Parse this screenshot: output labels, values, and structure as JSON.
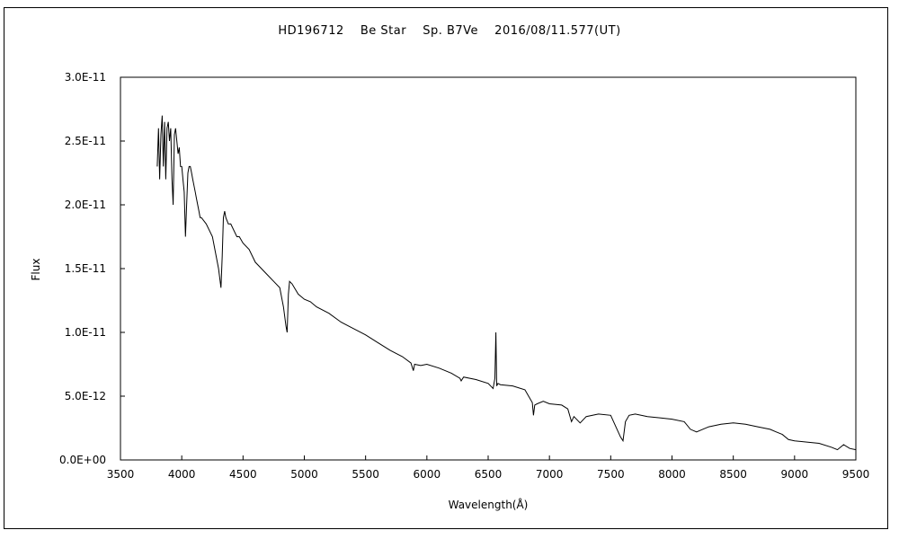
{
  "chart_data": {
    "type": "line",
    "title": "HD196712　 Be Star　 Sp. B7Ve　 2016/08/11.577(UT)",
    "xlabel": "Wavelength(Å)",
    "ylabel": "Flux",
    "xlim": [
      3500,
      9500
    ],
    "ylim": [
      0,
      3e-11
    ],
    "x_ticks": [
      "3500",
      "4000",
      "4500",
      "5000",
      "5500",
      "6000",
      "6500",
      "7000",
      "7500",
      "8000",
      "8500",
      "9000",
      "9500"
    ],
    "y_ticks": [
      "0.0E+00",
      "5.0E-12",
      "1.0E-11",
      "1.5E-11",
      "2.0E-11",
      "2.5E-11",
      "3.0E-11"
    ],
    "grid": false,
    "legend": "none",
    "series": [
      {
        "x": [
          3800,
          3810,
          3820,
          3830,
          3840,
          3850,
          3860,
          3870,
          3880,
          3890,
          3900,
          3910,
          3920,
          3930,
          3940,
          3950,
          3960,
          3970,
          3980,
          3990,
          4000,
          4010,
          4020,
          4030,
          4040,
          4050,
          4060,
          4070,
          4080,
          4090,
          4100,
          4110,
          4120,
          4130,
          4140,
          4150,
          4160,
          4200,
          4250,
          4300,
          4320,
          4330,
          4340,
          4350,
          4360,
          4380,
          4400,
          4450,
          4470,
          4500,
          4550,
          4600,
          4650,
          4700,
          4750,
          4800,
          4830,
          4850,
          4860,
          4870,
          4880,
          4900,
          4950,
          5000,
          5050,
          5100,
          5200,
          5300,
          5400,
          5500,
          5600,
          5700,
          5800,
          5870,
          5890,
          5900,
          5950,
          6000,
          6100,
          6200,
          6270,
          6280,
          6300,
          6400,
          6500,
          6540,
          6555,
          6563,
          6570,
          6580,
          6600,
          6700,
          6800,
          6860,
          6870,
          6880,
          6900,
          6950,
          7000,
          7100,
          7150,
          7180,
          7200,
          7250,
          7300,
          7400,
          7500,
          7580,
          7600,
          7620,
          7650,
          7700,
          7800,
          7900,
          8000,
          8100,
          8150,
          8200,
          8250,
          8300,
          8400,
          8500,
          8600,
          8700,
          8800,
          8850,
          8900,
          8950,
          9000,
          9100,
          9200,
          9300,
          9350,
          9400,
          9450,
          9500
        ],
        "y": [
          2.3e-11,
          2.6e-11,
          2.2e-11,
          2.55e-11,
          2.7e-11,
          2.3e-11,
          2.65e-11,
          2.2e-11,
          2.6e-11,
          2.65e-11,
          2.5e-11,
          2.6e-11,
          2.2e-11,
          2e-11,
          2.55e-11,
          2.6e-11,
          2.5e-11,
          2.4e-11,
          2.45e-11,
          2.3e-11,
          2.3e-11,
          2.2e-11,
          2.1e-11,
          1.75e-11,
          2e-11,
          2.25e-11,
          2.3e-11,
          2.3e-11,
          2.25e-11,
          2.2e-11,
          2.15e-11,
          2.1e-11,
          2.05e-11,
          2e-11,
          1.95e-11,
          1.9e-11,
          1.9e-11,
          1.85e-11,
          1.75e-11,
          1.5e-11,
          1.35e-11,
          1.6e-11,
          1.9e-11,
          1.95e-11,
          1.9e-11,
          1.85e-11,
          1.85e-11,
          1.75e-11,
          1.75e-11,
          1.7e-11,
          1.65e-11,
          1.55e-11,
          1.5e-11,
          1.45e-11,
          1.4e-11,
          1.35e-11,
          1.2e-11,
          1.05e-11,
          1e-11,
          1.3e-11,
          1.4e-11,
          1.38e-11,
          1.3e-11,
          1.26e-11,
          1.24e-11,
          1.2e-11,
          1.15e-11,
          1.08e-11,
          1.03e-11,
          9.8e-12,
          9.2e-12,
          8.6e-12,
          8.1e-12,
          7.6e-12,
          7e-12,
          7.5e-12,
          7.4e-12,
          7.5e-12,
          7.2e-12,
          6.8e-12,
          6.4e-12,
          6.2e-12,
          6.5e-12,
          6.3e-12,
          6e-12,
          5.6e-12,
          6.4e-12,
          1e-11,
          5.8e-12,
          6e-12,
          5.9e-12,
          5.8e-12,
          5.5e-12,
          4.5e-12,
          3.5e-12,
          4.3e-12,
          4.4e-12,
          4.6e-12,
          4.4e-12,
          4.3e-12,
          4e-12,
          3e-12,
          3.4e-12,
          2.9e-12,
          3.4e-12,
          3.6e-12,
          3.5e-12,
          1.8e-12,
          1.5e-12,
          3e-12,
          3.5e-12,
          3.6e-12,
          3.4e-12,
          3.3e-12,
          3.2e-12,
          3e-12,
          2.4e-12,
          2.2e-12,
          2.4e-12,
          2.6e-12,
          2.8e-12,
          2.9e-12,
          2.8e-12,
          2.6e-12,
          2.4e-12,
          2.2e-12,
          2e-12,
          1.6e-12,
          1.5e-12,
          1.4e-12,
          1.3e-12,
          1e-12,
          8e-13,
          1.2e-12,
          9e-13,
          8e-13
        ]
      }
    ]
  }
}
